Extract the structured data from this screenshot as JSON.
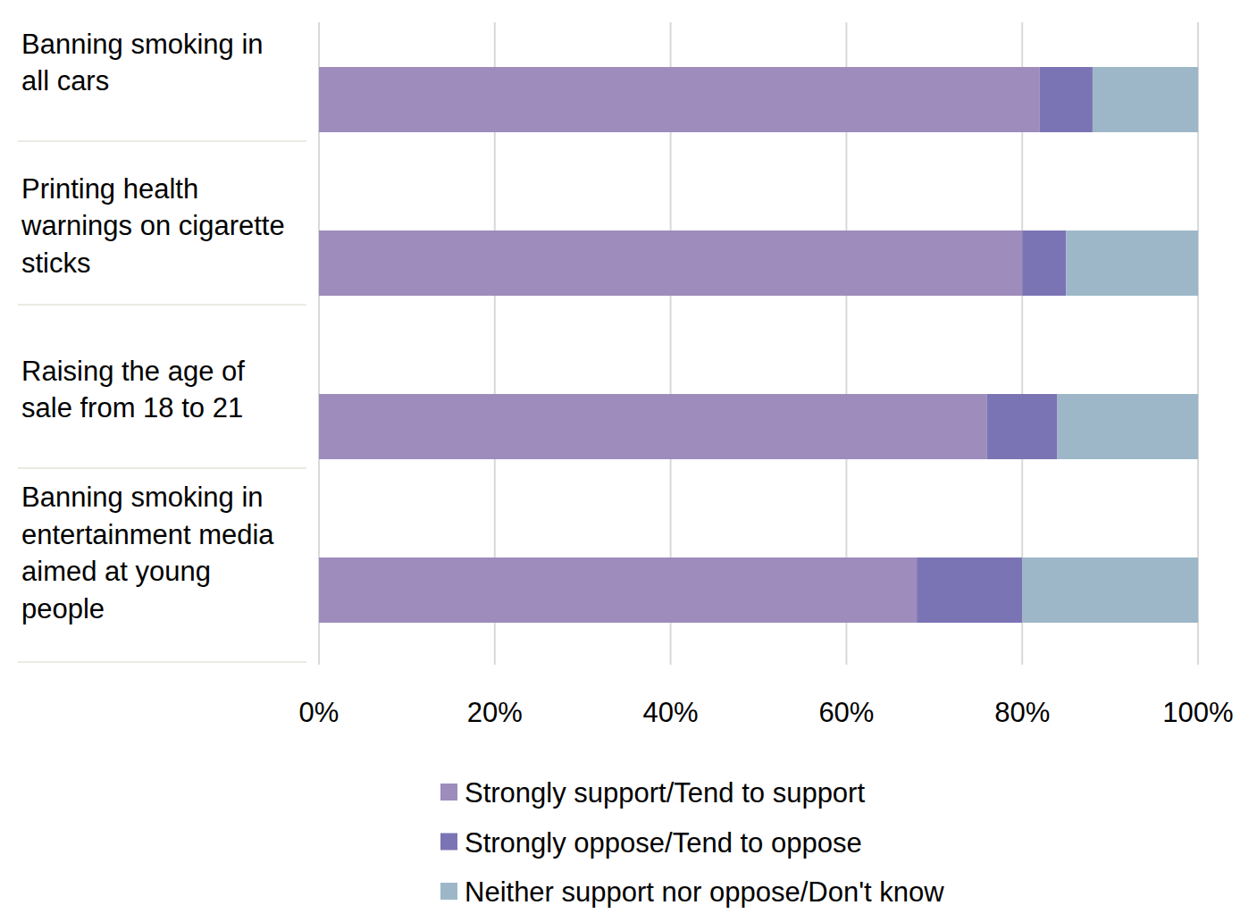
{
  "chart_data": {
    "type": "bar",
    "orientation": "horizontal",
    "stacked": true,
    "grid": true,
    "legend": "bottom",
    "categories": [
      "Banning smoking in all cars",
      "Printing health warnings on cigarette sticks",
      "Raising the age of sale from 18 to 21",
      "Banning smoking in entertainment media aimed at young people"
    ],
    "series": [
      {
        "name": "Strongly support/Tend to support",
        "color": "#9e8cbc",
        "values": [
          82,
          80,
          76,
          68
        ]
      },
      {
        "name": "Strongly oppose/Tend to oppose",
        "color": "#7b74b4",
        "values": [
          6,
          5,
          8,
          12
        ]
      },
      {
        "name": "Neither support nor oppose/Don't know",
        "color": "#9db7c8",
        "values": [
          12,
          15,
          16,
          20
        ]
      }
    ],
    "xlim": [
      0,
      100
    ],
    "xticks": [
      {
        "value": 0,
        "label": "0%"
      },
      {
        "value": 20,
        "label": "20%"
      },
      {
        "value": 40,
        "label": "40%"
      },
      {
        "value": 60,
        "label": "60%"
      },
      {
        "value": 80,
        "label": "80%"
      },
      {
        "value": 100,
        "label": "100%"
      }
    ]
  }
}
